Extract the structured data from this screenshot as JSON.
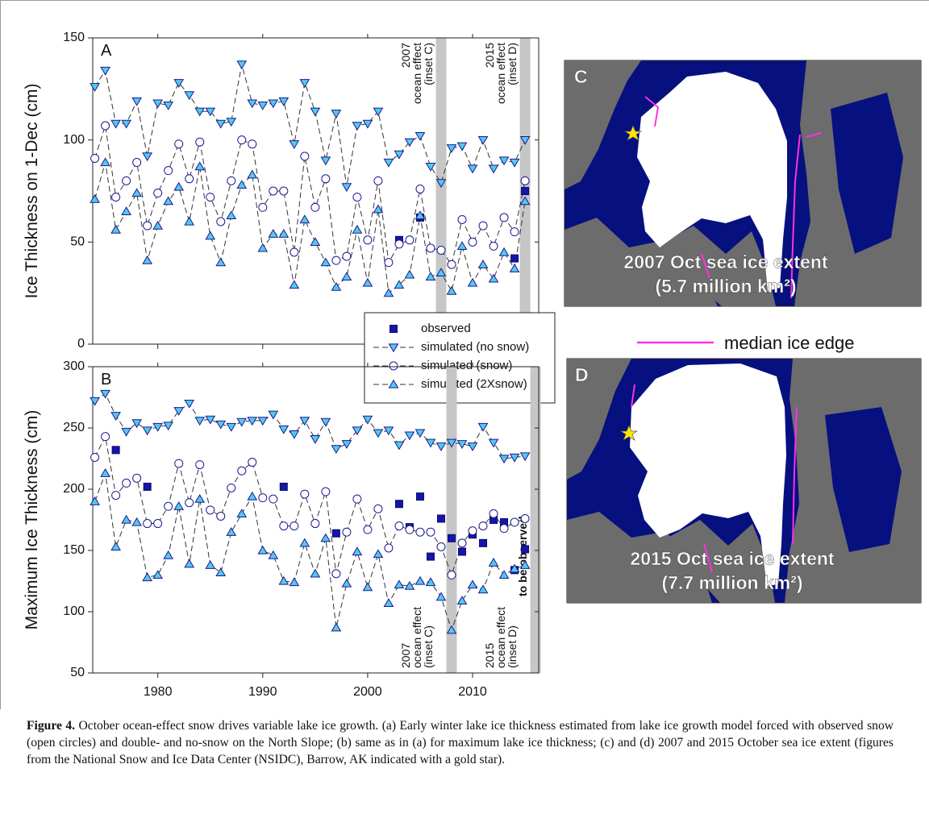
{
  "chart_data": [
    {
      "type": "line",
      "panel": "A",
      "ylabel": "Ice Thickness on 1-Dec (cm)",
      "x": [
        1974,
        1975,
        1976,
        1977,
        1978,
        1979,
        1980,
        1981,
        1982,
        1983,
        1984,
        1985,
        1986,
        1987,
        1988,
        1989,
        1990,
        1991,
        1992,
        1993,
        1994,
        1995,
        1996,
        1997,
        1998,
        1999,
        2000,
        2001,
        2002,
        2003,
        2004,
        2005,
        2006,
        2007,
        2008,
        2009,
        2010,
        2011,
        2012,
        2013,
        2014,
        2015
      ],
      "xlim": [
        1973.8,
        2016.3
      ],
      "xticks": [
        1980,
        1990,
        2000,
        2010
      ],
      "xtick_labels": false,
      "ylim": [
        0,
        150
      ],
      "yticks": [
        0,
        50,
        100,
        150
      ],
      "bands": [
        2007,
        2015
      ],
      "annotations": [
        {
          "lines": [
            "2007",
            "ocean effect",
            "(inset C)"
          ]
        },
        {
          "lines": [
            "2015",
            "ocean effect",
            "(inset D)"
          ]
        }
      ],
      "legend": "lower right",
      "series": [
        {
          "name": "observed",
          "marker": "square",
          "linestyle": "none",
          "color": "#1515a8",
          "values": [
            null,
            null,
            null,
            null,
            null,
            null,
            null,
            null,
            null,
            null,
            null,
            null,
            null,
            null,
            null,
            null,
            null,
            null,
            null,
            null,
            null,
            null,
            null,
            null,
            null,
            null,
            null,
            null,
            null,
            51,
            null,
            62,
            null,
            null,
            null,
            null,
            null,
            null,
            null,
            null,
            42,
            75
          ]
        },
        {
          "name": "simulated (no snow)",
          "marker": "triangle-down",
          "linestyle": "dashed",
          "color": "#55c8ec",
          "values": [
            126,
            134,
            108,
            108,
            119,
            92,
            118,
            117,
            128,
            122,
            114,
            114,
            108,
            109,
            137,
            118,
            117,
            118,
            119,
            98,
            128,
            114,
            90,
            113,
            77,
            107,
            108,
            114,
            89,
            93,
            99,
            102,
            87,
            79,
            96,
            97,
            86,
            100,
            86,
            90,
            89,
            100
          ]
        },
        {
          "name": "simulated (snow)",
          "marker": "circle",
          "linestyle": "dashed",
          "color": "#ffffff",
          "values": [
            91,
            107,
            72,
            80,
            89,
            58,
            74,
            85,
            98,
            81,
            99,
            72,
            60,
            80,
            100,
            98,
            67,
            75,
            75,
            45,
            92,
            67,
            81,
            41,
            43,
            72,
            51,
            80,
            40,
            49,
            51,
            76,
            47,
            46,
            39,
            61,
            50,
            58,
            48,
            62,
            55,
            80
          ]
        },
        {
          "name": "simulated (2Xsnow)",
          "marker": "triangle-up",
          "linestyle": "dashed",
          "color": "#55c8ec",
          "values": [
            71,
            89,
            56,
            65,
            74,
            41,
            58,
            70,
            77,
            60,
            87,
            53,
            40,
            63,
            78,
            83,
            47,
            54,
            54,
            29,
            61,
            50,
            40,
            28,
            33,
            56,
            30,
            66,
            25,
            29,
            34,
            63,
            33,
            35,
            26,
            48,
            30,
            39,
            32,
            45,
            37,
            70
          ]
        }
      ]
    },
    {
      "type": "line",
      "panel": "B",
      "ylabel": "Maximum Ice Thickness (cm)",
      "x": [
        1974,
        1975,
        1976,
        1977,
        1978,
        1979,
        1980,
        1981,
        1982,
        1983,
        1984,
        1985,
        1986,
        1987,
        1988,
        1989,
        1990,
        1991,
        1992,
        1993,
        1994,
        1995,
        1996,
        1997,
        1998,
        1999,
        2000,
        2001,
        2002,
        2003,
        2004,
        2005,
        2006,
        2007,
        2008,
        2009,
        2010,
        2011,
        2012,
        2013,
        2014,
        2015
      ],
      "xlim": [
        1973.8,
        2016.3
      ],
      "xticks": [
        1980,
        1990,
        2000,
        2010
      ],
      "xtick_labels": true,
      "ylim": [
        50,
        300
      ],
      "yticks": [
        50,
        100,
        150,
        200,
        250,
        300
      ],
      "bands": [
        2008,
        2016
      ],
      "annotations": [
        {
          "lines": [
            "2007",
            "ocean effect",
            "(inset C)"
          ]
        },
        {
          "lines": [
            "2015",
            "ocean effect",
            "(inset D)"
          ]
        }
      ],
      "note": "to be observed",
      "series": [
        {
          "marker": "square",
          "linestyle": "none",
          "color": "#1515a8",
          "values": [
            null,
            null,
            232,
            null,
            null,
            202,
            null,
            null,
            null,
            null,
            null,
            null,
            null,
            null,
            null,
            null,
            null,
            null,
            202,
            null,
            null,
            null,
            null,
            164,
            null,
            null,
            null,
            null,
            null,
            188,
            169,
            194,
            145,
            176,
            160,
            149,
            163,
            156,
            175,
            173,
            134,
            151
          ]
        },
        {
          "marker": "triangle-down",
          "linestyle": "dashed",
          "color": "#55c8ec",
          "values": [
            272,
            278,
            260,
            247,
            254,
            248,
            251,
            252,
            264,
            270,
            256,
            257,
            253,
            251,
            255,
            256,
            256,
            261,
            249,
            245,
            256,
            241,
            255,
            233,
            237,
            248,
            257,
            246,
            248,
            236,
            244,
            246,
            238,
            235,
            238,
            237,
            235,
            251,
            238,
            225,
            226,
            227
          ]
        },
        {
          "marker": "circle",
          "linestyle": "dashed",
          "color": "#ffffff",
          "values": [
            226,
            243,
            195,
            205,
            209,
            172,
            172,
            186,
            221,
            189,
            220,
            183,
            178,
            201,
            215,
            222,
            193,
            192,
            170,
            170,
            196,
            172,
            198,
            131,
            165,
            192,
            167,
            184,
            152,
            170,
            167,
            165,
            165,
            153,
            130,
            156,
            166,
            170,
            180,
            168,
            173,
            176
          ]
        },
        {
          "marker": "triangle-up",
          "linestyle": "dashed",
          "color": "#55c8ec",
          "values": [
            190,
            213,
            153,
            175,
            173,
            128,
            130,
            146,
            186,
            139,
            192,
            138,
            132,
            165,
            180,
            194,
            150,
            146,
            125,
            124,
            156,
            131,
            160,
            87,
            123,
            149,
            120,
            147,
            107,
            122,
            121,
            125,
            124,
            112,
            85,
            109,
            122,
            118,
            140,
            130,
            135,
            138
          ]
        }
      ]
    }
  ],
  "insets": [
    {
      "label": "C",
      "title": "2007 Oct sea ice extent",
      "extent": "(5.7 million km²)"
    },
    {
      "label": "D",
      "title": "2015 Oct sea ice extent",
      "extent": "(7.7 million km²)"
    }
  ],
  "inset_legend": "median ice edge",
  "caption": {
    "label": "Figure 4.",
    "text": "October ocean-effect snow drives variable lake ice growth. (a) Early winter lake ice thickness estimated from lake ice growth model forced with observed snow (open circles) and double- and no-snow on the North Slope; (b) same as in (a) for maximum lake ice thickness; (c) and (d) 2007 and 2015 October sea ice extent (figures from the National Snow and Ice Data Center (NSIDC), Barrow, AK indicated with a gold star)."
  }
}
